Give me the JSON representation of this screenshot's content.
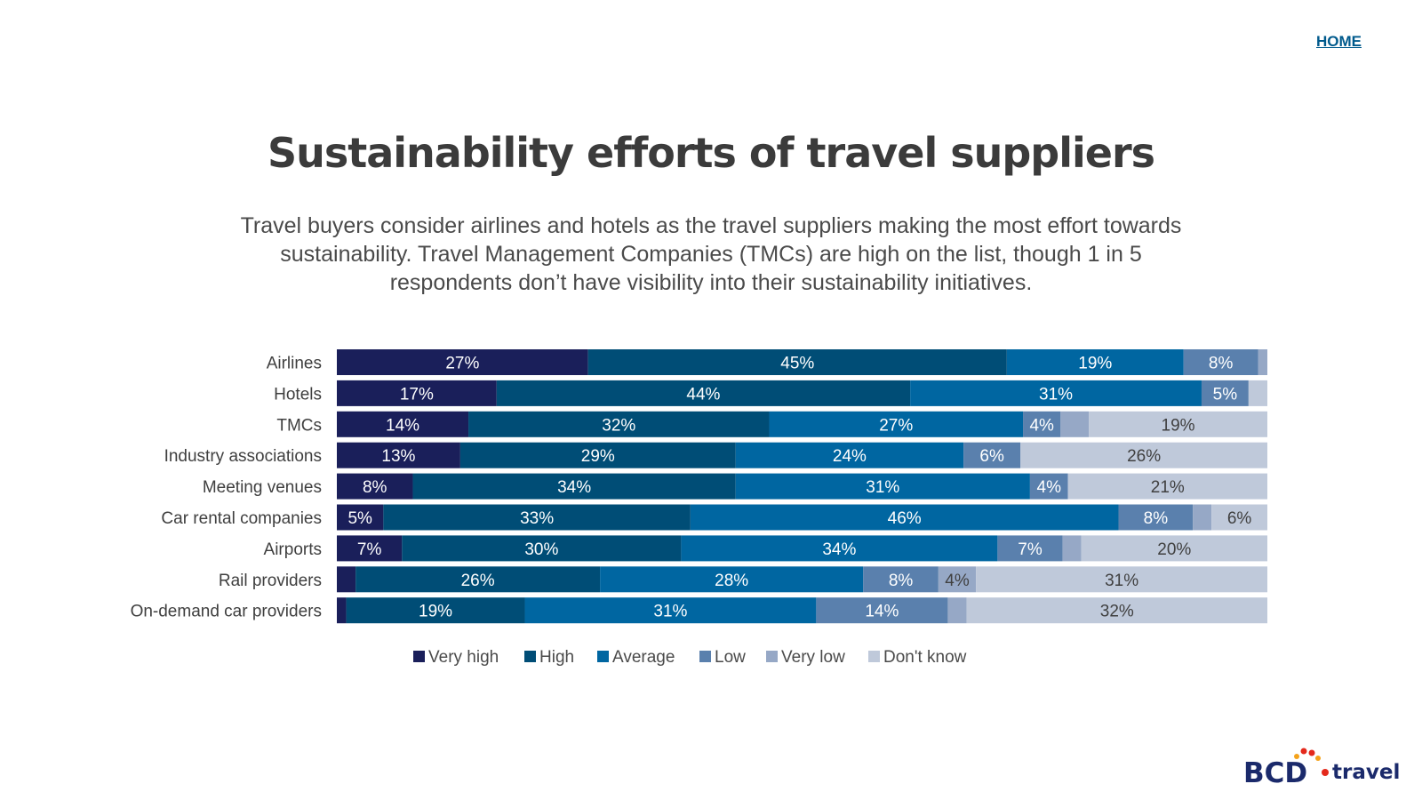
{
  "home_label": "HOME",
  "title": "Sustainability efforts of travel suppliers",
  "subtitle": "Travel buyers consider airlines and hotels as the travel suppliers making the most effort towards sustainability. Travel Management Companies (TMCs) are high on the list, though 1 in 5 respondents don’t have visibility into their sustainability initiatives.",
  "logo": {
    "text_left": "BCD",
    "text_right": "travel",
    "colors": {
      "brand_blue": "#1b2a6b",
      "brand_red": "#e4291c",
      "brand_orange": "#f4a21a"
    }
  },
  "chart_data": {
    "type": "bar",
    "orientation": "horizontal",
    "stacked": true,
    "normalized": true,
    "categories": [
      "Airlines",
      "Hotels",
      "TMCs",
      "Industry associations",
      "Meeting venues",
      "Car rental companies",
      "Airports",
      "Rail providers",
      "On-demand car providers"
    ],
    "series": [
      {
        "name": "Very high",
        "color": "#1a1f5a",
        "values": [
          27,
          17,
          14,
          13,
          8,
          5,
          7,
          2,
          1
        ]
      },
      {
        "name": "High",
        "color": "#004d76",
        "values": [
          45,
          44,
          32,
          29,
          34,
          33,
          30,
          26,
          19
        ]
      },
      {
        "name": "Average",
        "color": "#0066a1",
        "values": [
          19,
          31,
          27,
          24,
          31,
          46,
          34,
          28,
          31
        ]
      },
      {
        "name": "Low",
        "color": "#5a80ad",
        "values": [
          8,
          5,
          4,
          6,
          4,
          8,
          7,
          8,
          14
        ]
      },
      {
        "name": "Very low",
        "color": "#96a8c6",
        "values": [
          1,
          0,
          3,
          0,
          0,
          2,
          2,
          4,
          2
        ]
      },
      {
        "name": "Don't know",
        "color": "#bfc9da",
        "values": [
          0,
          2,
          19,
          26,
          21,
          6,
          20,
          31,
          32
        ]
      }
    ],
    "labels": [
      [
        "27%",
        "45%",
        "19%",
        "8%",
        "",
        ""
      ],
      [
        "17%",
        "44%",
        "31%",
        "5%",
        "",
        ""
      ],
      [
        "14%",
        "32%",
        "27%",
        "4%",
        "",
        "19%"
      ],
      [
        "13%",
        "29%",
        "24%",
        "6%",
        "",
        "26%"
      ],
      [
        "8%",
        "34%",
        "31%",
        "4%",
        "",
        "21%"
      ],
      [
        "5%",
        "33%",
        "46%",
        "8%",
        "",
        "6%"
      ],
      [
        "7%",
        "30%",
        "34%",
        "7%",
        "",
        "20%"
      ],
      [
        "",
        "26%",
        "28%",
        "8%",
        "4%",
        "31%"
      ],
      [
        "",
        "19%",
        "31%",
        "14%",
        "",
        "32%"
      ]
    ],
    "legend_position": "bottom",
    "grid": false
  }
}
